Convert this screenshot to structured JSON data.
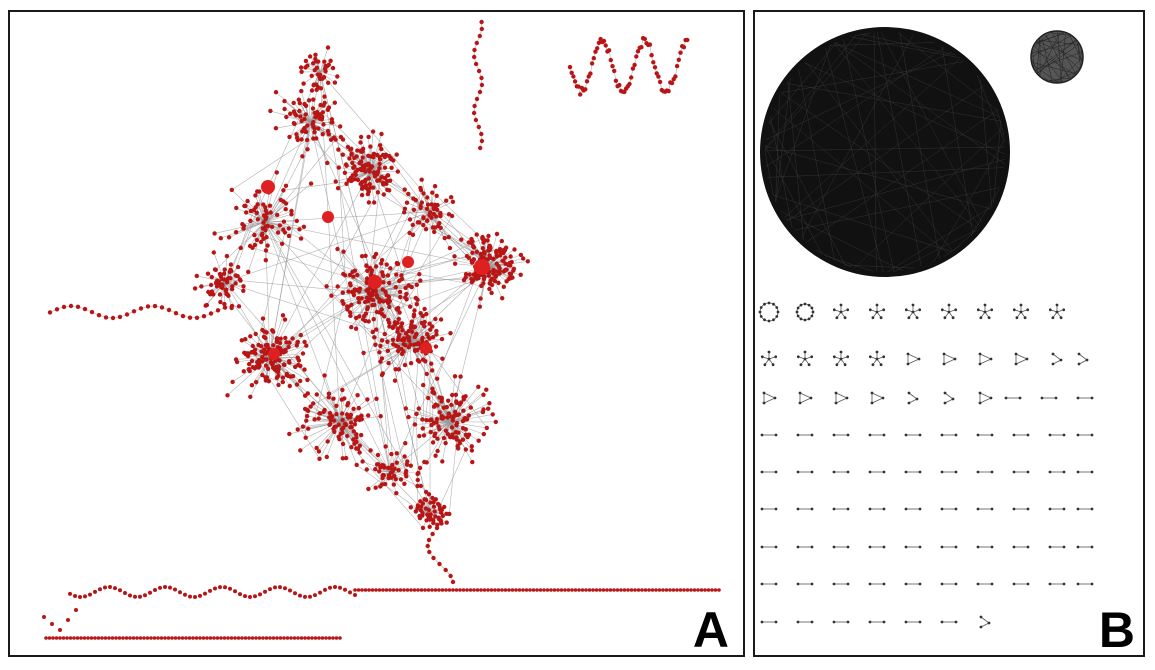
{
  "panels": [
    {
      "id": "A",
      "label": "A",
      "node_color": "#b81616",
      "edge_color": "#9a9a9a"
    },
    {
      "id": "B",
      "label": "B",
      "node_color": "#333333",
      "edge_color": "#555555"
    }
  ]
}
